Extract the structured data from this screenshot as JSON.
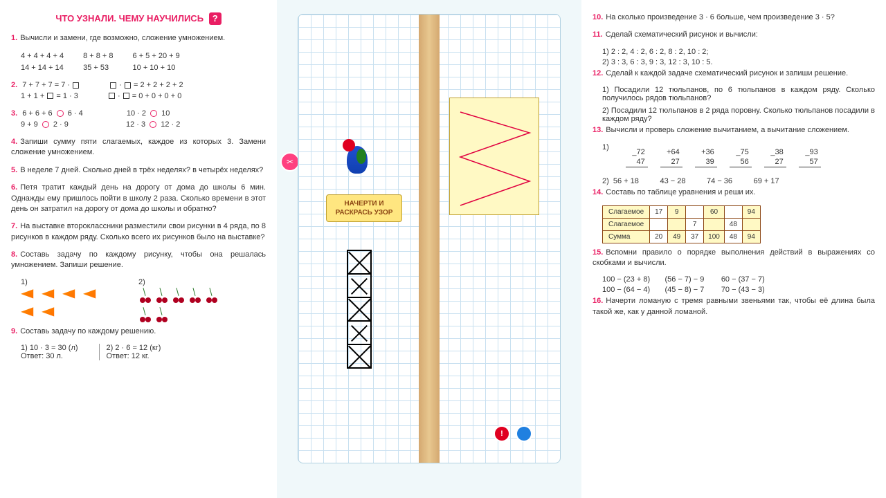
{
  "colors": {
    "accent": "#e91e63",
    "grid": "#c8e0f0",
    "yellow": "#fff9c4",
    "brown": "#8b4513"
  },
  "left": {
    "header": "ЧТО УЗНАЛИ. ЧЕМУ НАУЧИЛИСЬ",
    "badge": "?",
    "t1": {
      "num": "1.",
      "text": "Вычисли и замени, где возможно, сложение умножением.",
      "r1a": "4 + 4 + 4 + 4",
      "r1b": "8 + 8 + 8",
      "r1c": "6 + 5 + 20 + 9",
      "r2a": "14 + 14 + 14",
      "r2b": "35 + 53",
      "r2c": "10 + 10 + 10"
    },
    "t2": {
      "num": "2.",
      "l1": "7 + 7 + 7 = 7 · ",
      "l2": "1 + 1 + ",
      "l2b": " = 1 · 3",
      "r1": " = 2 + 2 + 2 + 2",
      "r2": " = 0 + 0 + 0 + 0"
    },
    "t3": {
      "num": "3.",
      "l1": "6 + 6 + 6 ",
      "l1b": " 6 · 4",
      "l2": "9 + 9 ",
      "l2b": " 2 · 9",
      "r1": "10 · 2 ",
      "r1b": " 10",
      "r2": "12 · 3 ",
      "r2b": " 12 · 2"
    },
    "t4": {
      "num": "4.",
      "text": "Запиши сумму пяти слагаемых, каждое из которых 3. Замени сложение умножением."
    },
    "t5": {
      "num": "5.",
      "text": "В неделе 7 дней. Сколько дней в трёх неделях? в четырёх неделях?"
    },
    "t6": {
      "num": "6.",
      "text": "Петя тратит каждый день на дорогу от дома до школы 6 мин. Однажды ему пришлось пойти в школу 2 раза. Сколько времени в этот день он затратил на дорогу от дома до школы и обратно?"
    },
    "t7": {
      "num": "7.",
      "text": "На выставке второклассники разместили свои рисунки в 4 ряда, по 8 рисунков в каждом ряду. Сколько всего их рисунков было на выставке?"
    },
    "t8": {
      "num": "8.",
      "text": "Составь задачу по каждому рисунку, чтобы она решалась умножением. Запиши решение.",
      "l1": "1)",
      "l2": "2)"
    },
    "t9": {
      "num": "9.",
      "text": "Составь задачу по каждому решению.",
      "a1": "1) 10 · 3 = 30  (л)",
      "a1b": "Ответ: 30 л.",
      "a2": "2) 2 · 6 = 12  (кг)",
      "a2b": "Ответ: 12 кг."
    }
  },
  "middle": {
    "label": "НАЧЕРТИ И РАСКРАСЬ УЗОР",
    "excl": "!",
    "scissors": "✂"
  },
  "right": {
    "t10": {
      "num": "10.",
      "text": "На сколько произведение 3 · 6 больше, чем произведение 3 · 5?"
    },
    "t11": {
      "num": "11.",
      "text": "Сделай схематический рисунок и вычисли:",
      "r1": "1)  2 : 2,  4 : 2,  6 : 2,  8 : 2,  10 : 2;",
      "r2": "2)  3 : 3,  6 : 3,  9 : 3,  12 : 3,  10 : 5."
    },
    "t12": {
      "num": "12.",
      "text": "Сделай к каждой задаче схематический рисунок и запиши решение.",
      "p1": "1) Посадили 12 тюльпанов, по 6 тюльпанов в каждом ряду. Сколько получилось рядов тюльпанов?",
      "p2": "2) Посадили 12 тюльпанов в 2 ряда поровну. Сколько тюльпанов посадили в каждом ряду?"
    },
    "t13": {
      "num": "13.",
      "text": "Вычисли и проверь сложение вычитанием, а вычитание сложением.",
      "n1": "1)",
      "v": [
        {
          "t": "_72",
          "b": "47"
        },
        {
          "t": "+64",
          "b": "27"
        },
        {
          "t": "+36",
          "b": "39"
        },
        {
          "t": "_75",
          "b": "56"
        },
        {
          "t": "_38",
          "b": "27"
        },
        {
          "t": "_93",
          "b": "57"
        }
      ],
      "r2": "2)  56 + 18          43 − 28          74 − 36          69 + 17"
    },
    "t14": {
      "num": "14.",
      "text": "Составь по таблице уравнения и реши их.",
      "rows": [
        [
          "Слагаемое",
          "17",
          "9",
          "",
          "60",
          "",
          "94"
        ],
        [
          "Слагаемое",
          "",
          "",
          "7",
          "",
          "48",
          ""
        ],
        [
          "Сумма",
          "20",
          "49",
          "37",
          "100",
          "48",
          "94"
        ]
      ],
      "yellow_cols": [
        0,
        2,
        4,
        6
      ]
    },
    "t15": {
      "num": "15.",
      "text": "Вспомни правило о порядке выполнения действий в выражениях со скобками и вычисли.",
      "r1": "100 − (23 + 8)       (56 − 7) − 9        60 − (37 − 7)",
      "r2": "100 − (64 − 4)       (45 − 8) − 7        70 − (43 − 3)"
    },
    "t16": {
      "num": "16.",
      "text": "Начерти ломаную с тремя равными звеньями так, чтобы её длина была такой же, как у данной ломаной."
    }
  }
}
